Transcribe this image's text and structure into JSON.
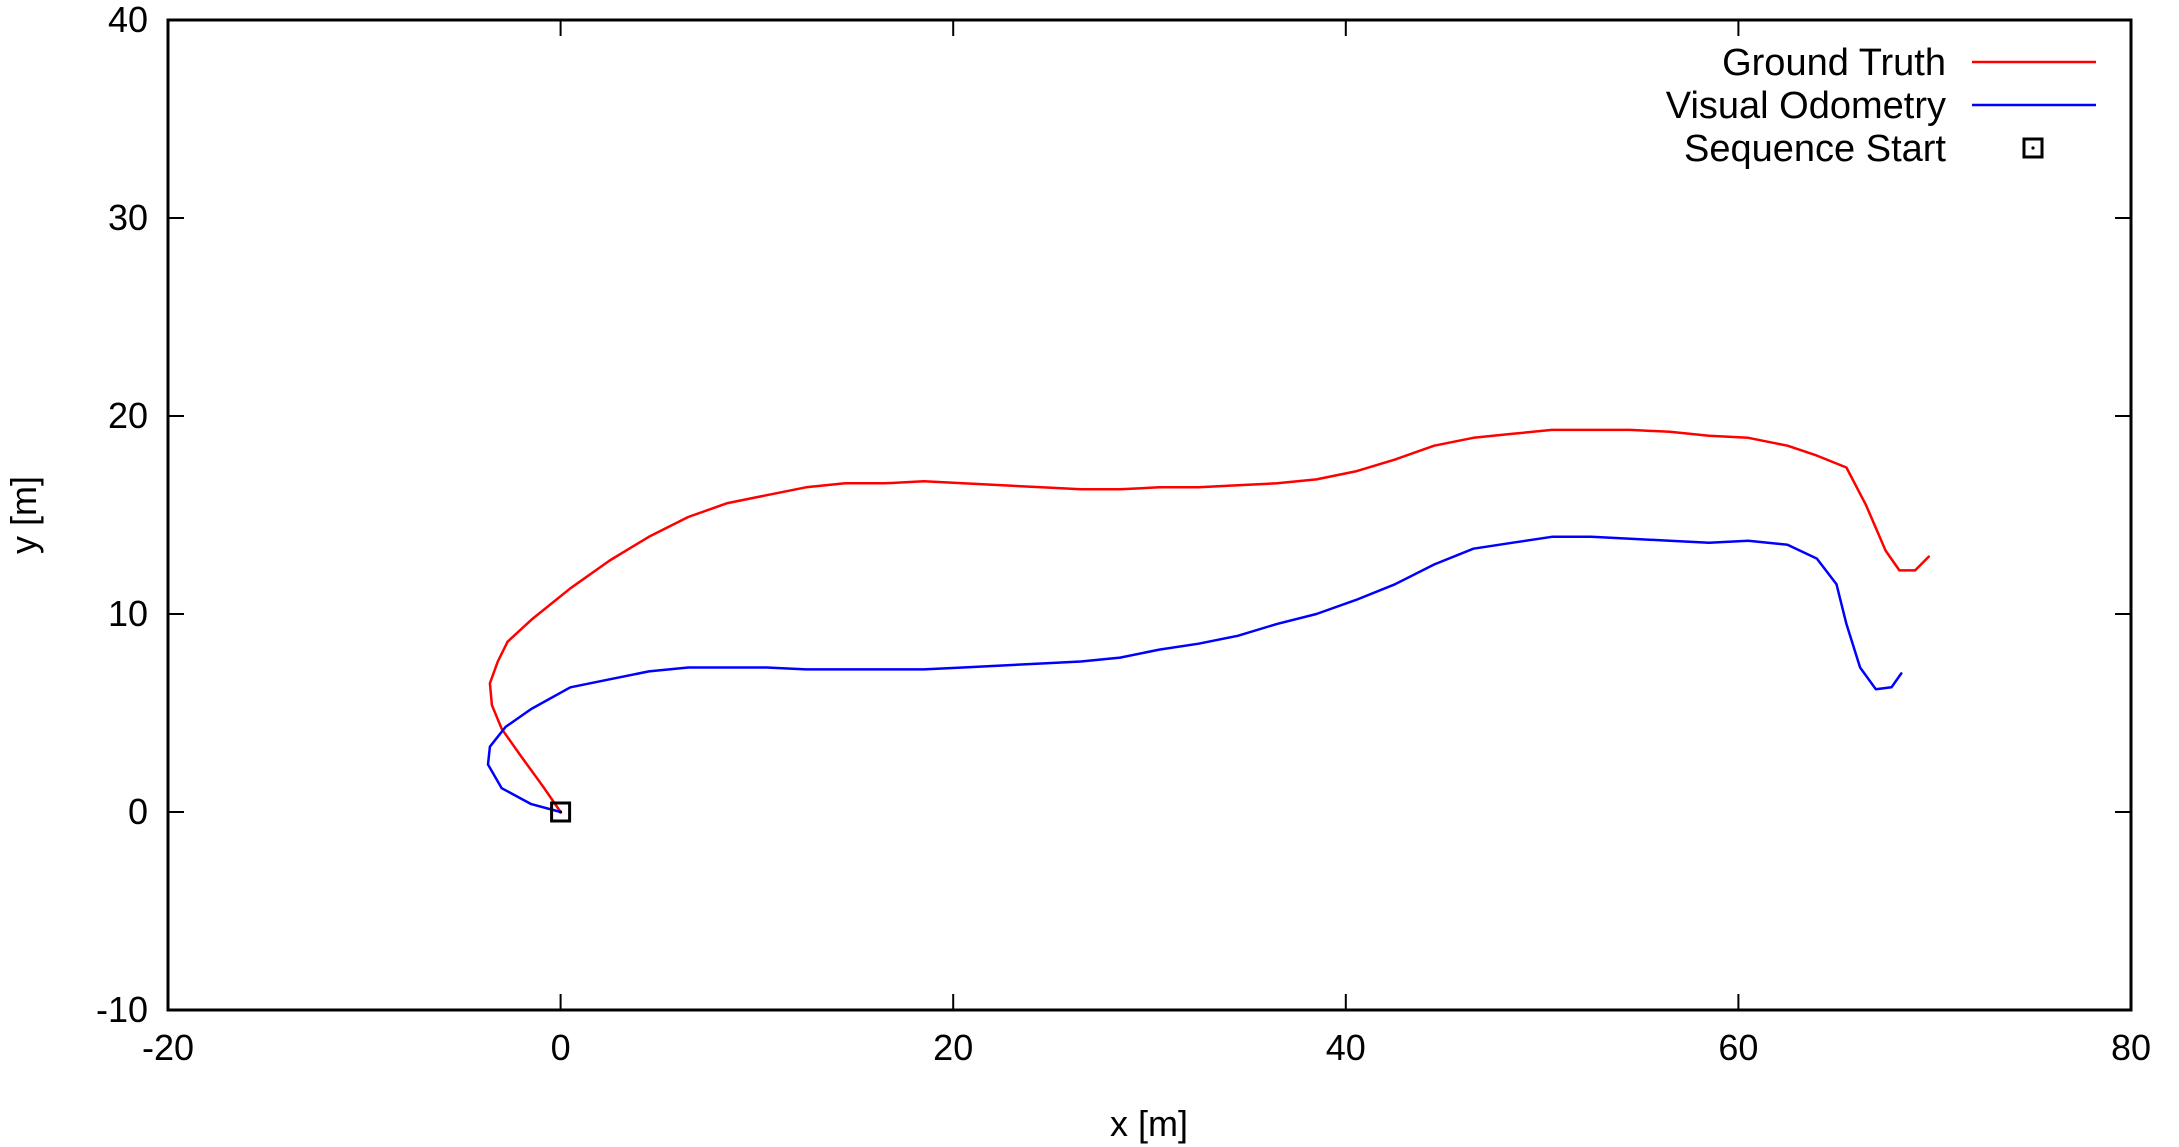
{
  "chart_data": {
    "type": "line",
    "title": "",
    "xlabel": "x [m]",
    "ylabel": "y [m]",
    "xlim": [
      -20,
      80
    ],
    "ylim": [
      -10,
      40
    ],
    "xticks": [
      -20,
      0,
      20,
      40,
      60,
      80
    ],
    "yticks": [
      -10,
      0,
      10,
      20,
      30,
      40
    ],
    "grid": false,
    "legend_position": "top-right",
    "series": [
      {
        "name": "Ground Truth",
        "color": "#ff0000",
        "points": [
          [
            0.0,
            0.0
          ],
          [
            -0.9,
            1.3
          ],
          [
            -2.0,
            2.8
          ],
          [
            -3.0,
            4.2
          ],
          [
            -3.5,
            5.4
          ],
          [
            -3.6,
            6.5
          ],
          [
            -3.2,
            7.6
          ],
          [
            -2.7,
            8.6
          ],
          [
            -1.5,
            9.7
          ],
          [
            0.5,
            11.3
          ],
          [
            2.5,
            12.7
          ],
          [
            4.5,
            13.9
          ],
          [
            6.5,
            14.9
          ],
          [
            8.5,
            15.6
          ],
          [
            10.5,
            16.0
          ],
          [
            12.5,
            16.4
          ],
          [
            14.5,
            16.6
          ],
          [
            16.5,
            16.6
          ],
          [
            18.5,
            16.7
          ],
          [
            20.5,
            16.6
          ],
          [
            22.5,
            16.5
          ],
          [
            24.5,
            16.4
          ],
          [
            26.5,
            16.3
          ],
          [
            28.5,
            16.3
          ],
          [
            30.5,
            16.4
          ],
          [
            32.5,
            16.4
          ],
          [
            34.5,
            16.5
          ],
          [
            36.5,
            16.6
          ],
          [
            38.5,
            16.8
          ],
          [
            40.5,
            17.2
          ],
          [
            42.5,
            17.8
          ],
          [
            44.5,
            18.5
          ],
          [
            46.5,
            18.9
          ],
          [
            48.5,
            19.1
          ],
          [
            50.5,
            19.3
          ],
          [
            52.5,
            19.3
          ],
          [
            54.5,
            19.3
          ],
          [
            56.5,
            19.2
          ],
          [
            58.5,
            19.0
          ],
          [
            60.5,
            18.9
          ],
          [
            62.5,
            18.5
          ],
          [
            64.0,
            18.0
          ],
          [
            65.5,
            17.4
          ],
          [
            66.5,
            15.5
          ],
          [
            67.5,
            13.2
          ],
          [
            68.2,
            12.2
          ],
          [
            69.0,
            12.2
          ],
          [
            69.7,
            12.9
          ]
        ]
      },
      {
        "name": "Visual Odometry",
        "color": "#0000ff",
        "points": [
          [
            0.0,
            0.0
          ],
          [
            -1.5,
            0.4
          ],
          [
            -3.0,
            1.2
          ],
          [
            -3.7,
            2.4
          ],
          [
            -3.6,
            3.3
          ],
          [
            -2.8,
            4.3
          ],
          [
            -1.5,
            5.2
          ],
          [
            0.5,
            6.3
          ],
          [
            2.5,
            6.7
          ],
          [
            4.5,
            7.1
          ],
          [
            6.5,
            7.3
          ],
          [
            8.5,
            7.3
          ],
          [
            10.5,
            7.3
          ],
          [
            12.5,
            7.2
          ],
          [
            14.5,
            7.2
          ],
          [
            16.5,
            7.2
          ],
          [
            18.5,
            7.2
          ],
          [
            20.5,
            7.3
          ],
          [
            22.5,
            7.4
          ],
          [
            24.5,
            7.5
          ],
          [
            26.5,
            7.6
          ],
          [
            28.5,
            7.8
          ],
          [
            30.5,
            8.2
          ],
          [
            32.5,
            8.5
          ],
          [
            34.5,
            8.9
          ],
          [
            36.5,
            9.5
          ],
          [
            38.5,
            10.0
          ],
          [
            40.5,
            10.7
          ],
          [
            42.5,
            11.5
          ],
          [
            44.5,
            12.5
          ],
          [
            46.5,
            13.3
          ],
          [
            48.5,
            13.6
          ],
          [
            50.5,
            13.9
          ],
          [
            52.5,
            13.9
          ],
          [
            54.5,
            13.8
          ],
          [
            56.5,
            13.7
          ],
          [
            58.5,
            13.6
          ],
          [
            60.5,
            13.7
          ],
          [
            62.5,
            13.5
          ],
          [
            64.0,
            12.8
          ],
          [
            65.0,
            11.5
          ],
          [
            65.5,
            9.5
          ],
          [
            66.2,
            7.3
          ],
          [
            67.0,
            6.2
          ],
          [
            67.8,
            6.3
          ],
          [
            68.3,
            7.0
          ]
        ]
      },
      {
        "name": "Sequence Start",
        "color": "#000000",
        "marker": "box",
        "points": [
          [
            0.0,
            0.0
          ]
        ]
      }
    ]
  }
}
